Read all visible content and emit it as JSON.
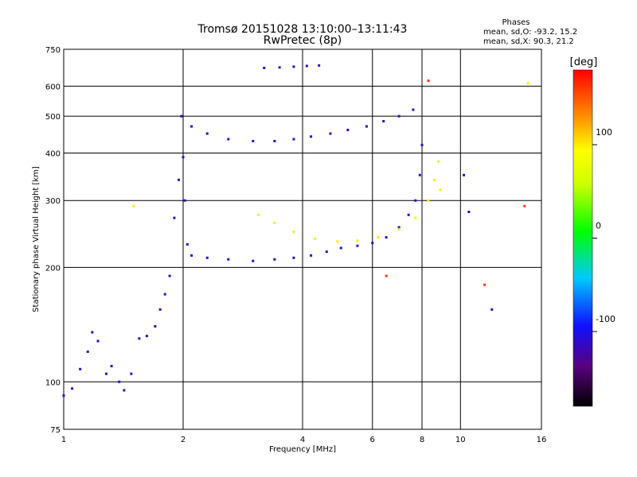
{
  "chart_data": {
    "type": "scatter",
    "title": "Tromsø 20151028 13:10:00–13:11:43",
    "subtitle": "RwPretec (8p)",
    "xlabel": "Frequency [MHz]",
    "ylabel": "Stationary phase Virtual Height [km]",
    "x_scale": "log",
    "y_scale": "log",
    "xlim": [
      1,
      16
    ],
    "ylim": [
      75,
      750
    ],
    "x_ticks": [
      1,
      2,
      4,
      6,
      8,
      10,
      16
    ],
    "x_tick_labels": [
      "1",
      "2",
      "4",
      "6",
      "8",
      "10",
      "16"
    ],
    "y_ticks": [
      75,
      100,
      200,
      300,
      400,
      500,
      600,
      750
    ],
    "y_tick_labels": [
      "75",
      "100",
      "200",
      "300",
      "400",
      "500",
      "600",
      "750"
    ],
    "grid": true,
    "phases_box": {
      "title": "Phases",
      "line_O": "mean, sd,O: -93.2, 15.2",
      "line_X": "mean, sd,X:  90.3, 21.2"
    },
    "colorbar": {
      "label": "[deg]",
      "range": [
        -180,
        180
      ],
      "ticks": [
        100,
        0,
        -100
      ],
      "tick_labels": [
        "100",
        "0",
        "-100"
      ],
      "colormap": "rainbow (black-purple-blue-cyan-green-yellow-orange-red)"
    },
    "series": [
      {
        "values": [
          [
            1.0,
            92,
            -110
          ],
          [
            1.05,
            96,
            -110
          ],
          [
            1.1,
            108,
            -110
          ],
          [
            1.15,
            120,
            -110
          ],
          [
            1.18,
            135,
            -110
          ],
          [
            1.22,
            128,
            -110
          ],
          [
            1.28,
            105,
            -110
          ],
          [
            1.32,
            110,
            -110
          ],
          [
            1.38,
            100,
            -110
          ],
          [
            1.42,
            95,
            -110
          ],
          [
            1.48,
            105,
            -110
          ],
          [
            1.55,
            130,
            -110
          ],
          [
            1.62,
            132,
            -110
          ],
          [
            1.7,
            140,
            -110
          ],
          [
            1.75,
            155,
            -110
          ],
          [
            1.8,
            170,
            -110
          ],
          [
            1.85,
            190,
            -110
          ],
          [
            1.9,
            270,
            -110
          ],
          [
            1.95,
            340,
            -110
          ],
          [
            1.98,
            500,
            -110
          ]
        ]
      },
      {
        "values": [
          [
            2.0,
            390,
            -110
          ],
          [
            2.02,
            300,
            -110
          ],
          [
            2.05,
            230,
            -110
          ],
          [
            2.1,
            215,
            -110
          ],
          [
            2.3,
            212,
            -110
          ],
          [
            2.6,
            210,
            -110
          ],
          [
            3.0,
            208,
            -110
          ],
          [
            3.4,
            210,
            -110
          ],
          [
            3.8,
            212,
            -110
          ],
          [
            4.2,
            215,
            -110
          ],
          [
            4.6,
            220,
            -110
          ],
          [
            5.0,
            225,
            -110
          ],
          [
            5.5,
            228,
            -110
          ],
          [
            6.0,
            232,
            -110
          ],
          [
            6.5,
            240,
            -110
          ],
          [
            7.0,
            255,
            -110
          ],
          [
            7.4,
            275,
            -110
          ],
          [
            7.7,
            300,
            -110
          ],
          [
            7.9,
            350,
            -110
          ],
          [
            8.0,
            420,
            -110
          ]
        ]
      },
      {
        "values": [
          [
            2.1,
            470,
            -110
          ],
          [
            2.3,
            450,
            -110
          ],
          [
            2.6,
            435,
            -110
          ],
          [
            3.0,
            430,
            -110
          ],
          [
            3.4,
            430,
            -110
          ],
          [
            3.8,
            435,
            -110
          ],
          [
            4.2,
            442,
            -110
          ],
          [
            4.7,
            450,
            -110
          ],
          [
            5.2,
            460,
            -110
          ],
          [
            5.8,
            470,
            -110
          ],
          [
            6.4,
            485,
            -110
          ],
          [
            7.0,
            500,
            -110
          ],
          [
            7.6,
            520,
            -110
          ]
        ]
      },
      {
        "values": [
          [
            3.2,
            670,
            -110
          ],
          [
            3.5,
            672,
            -110
          ],
          [
            3.8,
            675,
            -110
          ],
          [
            4.1,
            678,
            -110
          ],
          [
            4.4,
            680,
            -110
          ]
        ]
      },
      {
        "values": [
          [
            3.1,
            275,
            100
          ],
          [
            3.4,
            262,
            100
          ],
          [
            3.8,
            248,
            100
          ],
          [
            4.3,
            238,
            100
          ],
          [
            4.9,
            234,
            100
          ],
          [
            5.5,
            235,
            100
          ],
          [
            6.2,
            240,
            100
          ],
          [
            7.0,
            252,
            100
          ],
          [
            7.7,
            270,
            100
          ],
          [
            8.3,
            300,
            100
          ],
          [
            8.6,
            340,
            100
          ],
          [
            8.8,
            380,
            100
          ],
          [
            8.9,
            320,
            100
          ]
        ]
      },
      {
        "values": [
          [
            1.5,
            290,
            100
          ],
          [
            6.5,
            190,
            160
          ],
          [
            8.3,
            620,
            160
          ],
          [
            10.2,
            350,
            -110
          ],
          [
            10.5,
            280,
            -110
          ],
          [
            11.5,
            180,
            160
          ],
          [
            12.0,
            155,
            -110
          ],
          [
            14.8,
            610,
            100
          ],
          [
            14.5,
            290,
            160
          ]
        ]
      }
    ]
  }
}
